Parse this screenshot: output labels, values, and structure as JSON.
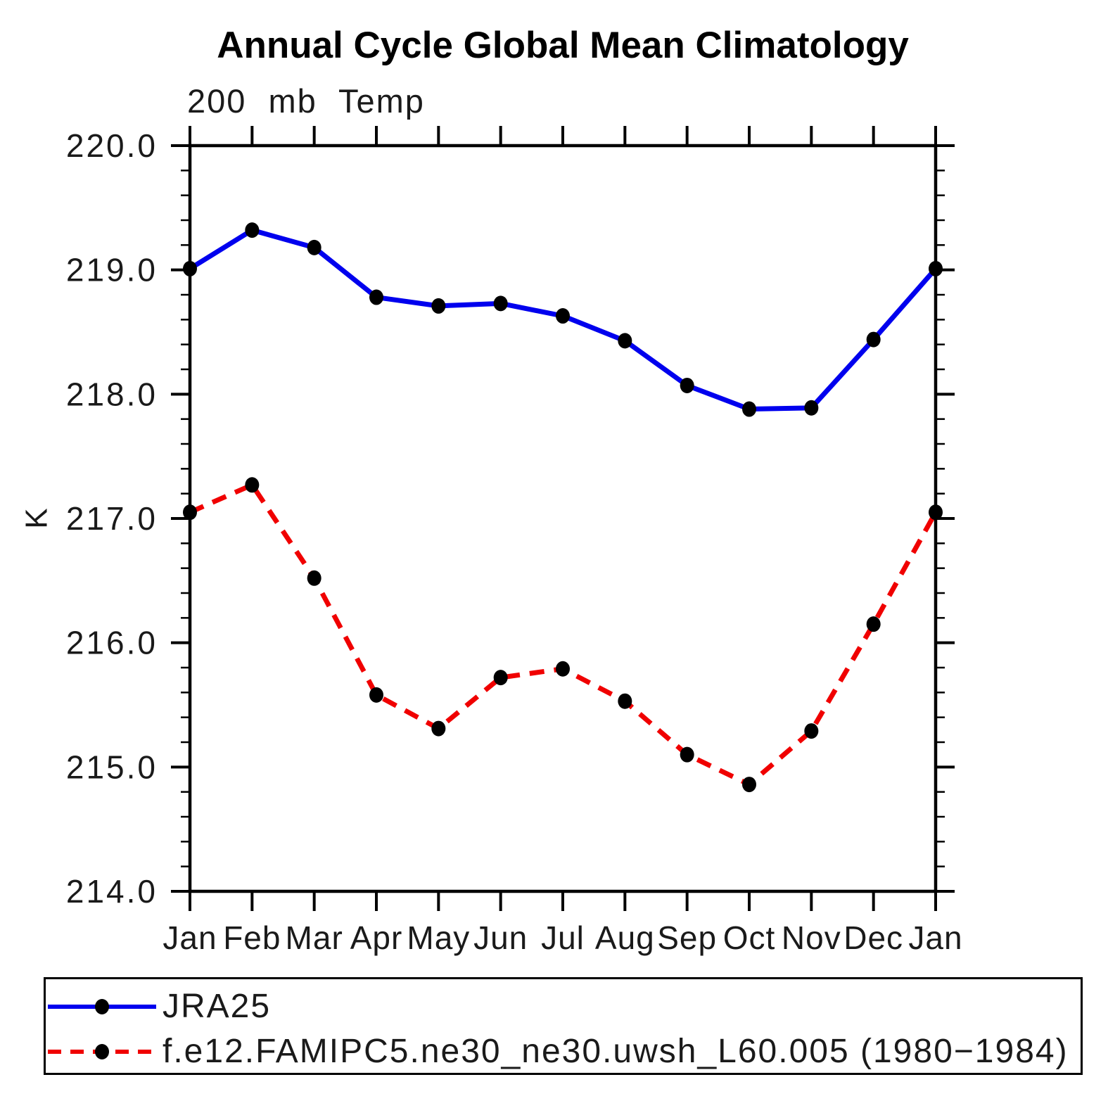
{
  "title": "Annual Cycle Global Mean Climatology",
  "subtitle": "200 mb Temp",
  "chart_data": {
    "type": "line",
    "title": "Annual Cycle Global Mean Climatology",
    "subtitle": "200 mb Temp",
    "xlabel": "",
    "ylabel": "K",
    "categories": [
      "Jan",
      "Feb",
      "Mar",
      "Apr",
      "May",
      "Jun",
      "Jul",
      "Aug",
      "Sep",
      "Oct",
      "Nov",
      "Dec",
      "Jan"
    ],
    "ylim": [
      214.0,
      220.0
    ],
    "ytick_major_interval": 1.0,
    "ytick_minor_interval": 0.2,
    "ytick_labels": [
      "220.0",
      "219.0",
      "218.0",
      "217.0",
      "216.0",
      "215.0",
      "214.0"
    ],
    "grid": false,
    "legend_position": "bottom",
    "marker_color": "#000000",
    "axis_color": "#000000",
    "series": [
      {
        "name": "JRA25",
        "color": "#0000ee",
        "style": "solid",
        "marker": "circle",
        "values": [
          219.01,
          219.32,
          219.18,
          218.78,
          218.71,
          218.73,
          218.63,
          218.43,
          218.07,
          217.88,
          217.89,
          218.44,
          219.01
        ]
      },
      {
        "name": "f.e12.FAMIPC5.ne30_ne30.uwsh_L60.005 (1980−1984)",
        "color": "#f00000",
        "style": "dashed",
        "marker": "circle",
        "values": [
          217.05,
          217.27,
          216.52,
          215.58,
          215.31,
          215.72,
          215.79,
          215.53,
          215.1,
          214.86,
          215.29,
          216.15,
          217.05
        ]
      }
    ]
  }
}
